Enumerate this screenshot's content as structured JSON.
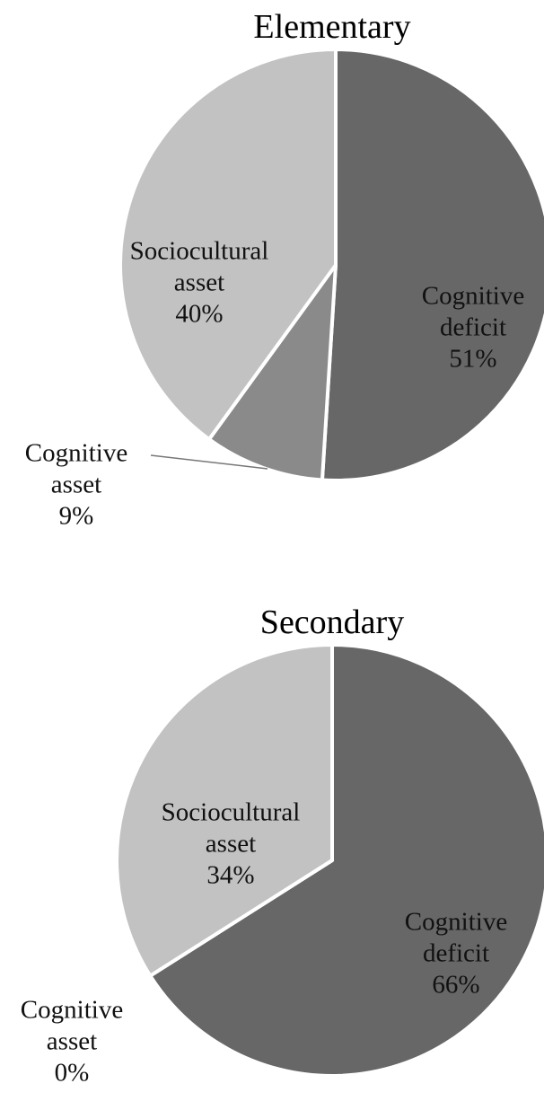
{
  "chart_data": [
    {
      "type": "pie",
      "title": "Elementary",
      "categories": [
        "Cognitive deficit",
        "Cognitive asset",
        "Sociocultural asset"
      ],
      "values": [
        51,
        9,
        40
      ],
      "value_labels": [
        "51%",
        "9%",
        "40%"
      ],
      "colors": [
        "#676767",
        "#8a8a8a",
        "#c2c2c2"
      ]
    },
    {
      "type": "pie",
      "title": "Secondary",
      "categories": [
        "Cognitive deficit",
        "Cognitive asset",
        "Sociocultural asset"
      ],
      "values": [
        66,
        0,
        34
      ],
      "value_labels": [
        "66%",
        "0%",
        "34%"
      ],
      "colors": [
        "#676767",
        "#8a8a8a",
        "#c2c2c2"
      ]
    }
  ]
}
